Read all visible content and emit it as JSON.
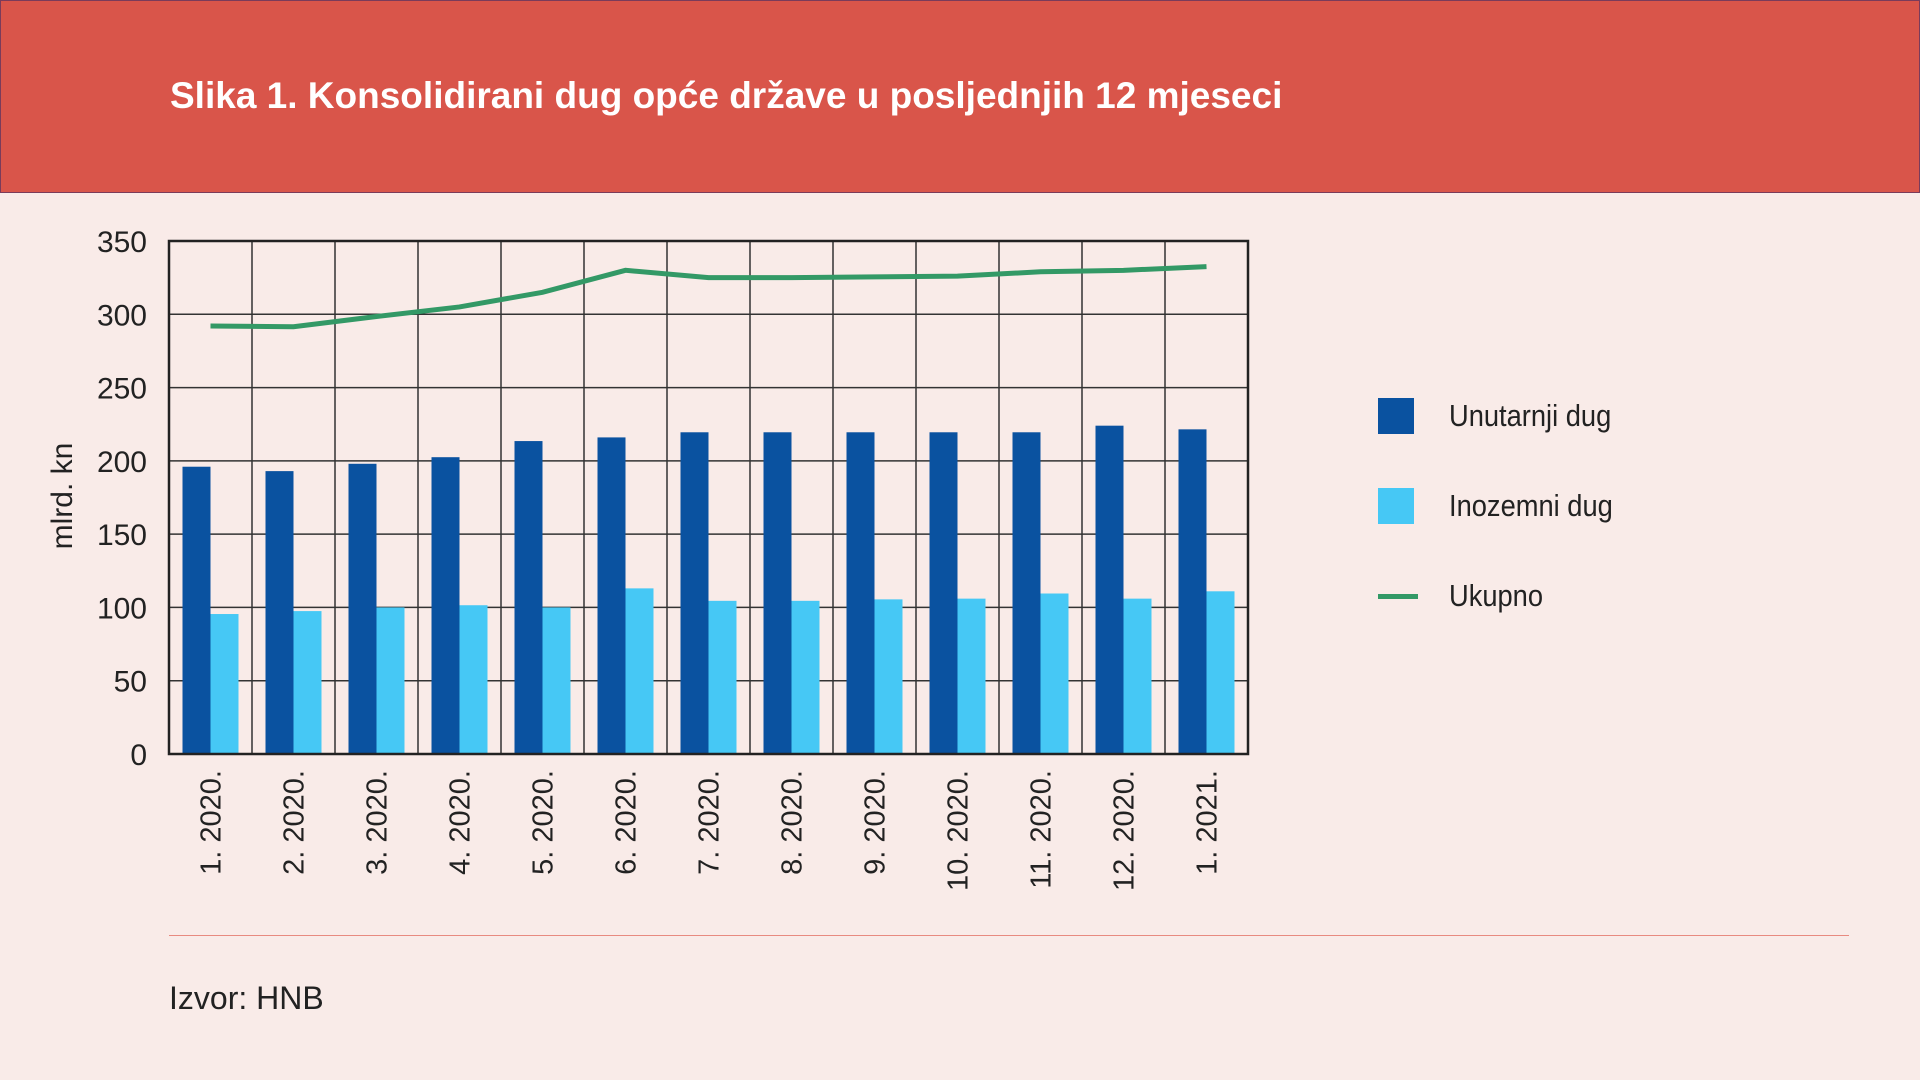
{
  "title": "Slika 1. Konsolidirani dug opće države u posljednjih 12 mjeseci",
  "source": "Izvor: HNB",
  "colors": {
    "header": "#d9554a",
    "domestic": "#0a52a0",
    "foreign": "#46c8f5",
    "total": "#339966"
  },
  "chart_data": {
    "type": "bar",
    "title": "Slika 1. Konsolidirani dug opće države u posljednjih 12 mjeseci",
    "xlabel": "",
    "ylabel": "mlrd. kn",
    "ylim": [
      0,
      350
    ],
    "yticks": [
      0,
      50,
      100,
      150,
      200,
      250,
      300,
      350
    ],
    "grid": true,
    "legend_position": "right",
    "categories": [
      "1. 2020.",
      "2. 2020.",
      "3. 2020.",
      "4. 2020.",
      "5. 2020.",
      "6. 2020.",
      "7. 2020.",
      "8. 2020.",
      "9. 2020.",
      "10. 2020.",
      "11. 2020.",
      "12. 2020.",
      "1. 2021."
    ],
    "series": [
      {
        "name": "Unutarnji dug",
        "type": "bar",
        "values": [
          196,
          193,
          198,
          202.5,
          213.5,
          216,
          219.5,
          219.5,
          219.5,
          219.5,
          219.5,
          224,
          221.5
        ]
      },
      {
        "name": "Inozemni dug",
        "type": "bar",
        "values": [
          95.5,
          97.5,
          100,
          101.5,
          100,
          113,
          104.5,
          104.5,
          105.5,
          106,
          109.5,
          106,
          111
        ]
      },
      {
        "name": "Ukupno",
        "type": "line",
        "values": [
          292,
          291.5,
          298.5,
          305,
          315,
          330,
          325,
          325,
          325.5,
          326,
          329,
          330,
          332.5
        ]
      }
    ]
  }
}
